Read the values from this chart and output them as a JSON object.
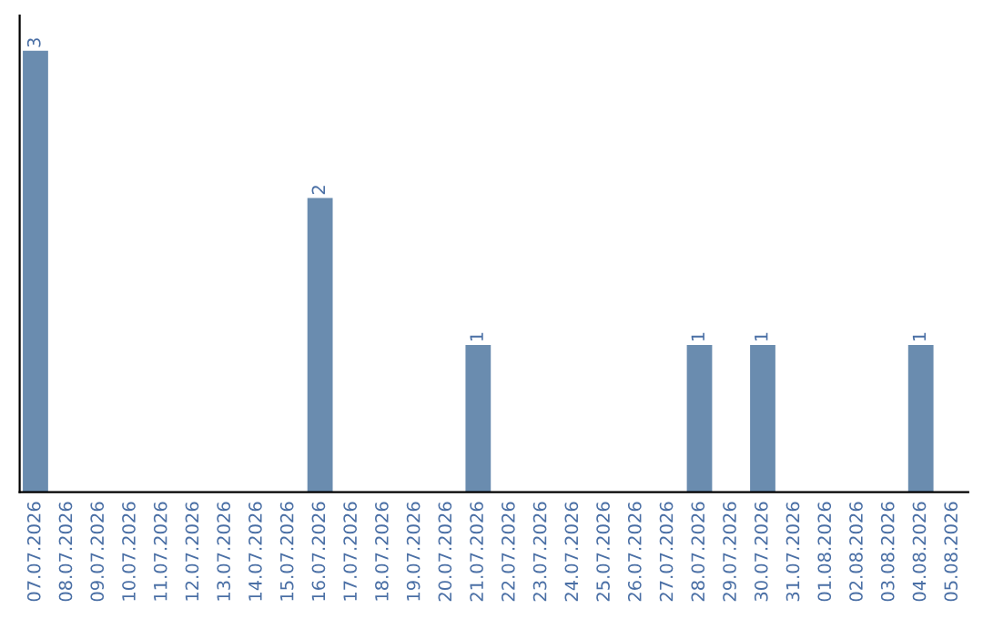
{
  "chart_data": {
    "type": "bar",
    "categories": [
      "07.07.2026",
      "08.07.2026",
      "09.07.2026",
      "10.07.2026",
      "11.07.2026",
      "12.07.2026",
      "13.07.2026",
      "14.07.2026",
      "15.07.2026",
      "16.07.2026",
      "17.07.2026",
      "18.07.2026",
      "19.07.2026",
      "20.07.2026",
      "21.07.2026",
      "22.07.2026",
      "23.07.2026",
      "24.07.2026",
      "25.07.2026",
      "26.07.2026",
      "27.07.2026",
      "28.07.2026",
      "29.07.2026",
      "30.07.2026",
      "31.07.2026",
      "01.08.2026",
      "02.08.2026",
      "03.08.2026",
      "04.08.2026",
      "05.08.2026"
    ],
    "values": [
      3,
      0,
      0,
      0,
      0,
      0,
      0,
      0,
      0,
      2,
      0,
      0,
      0,
      0,
      1,
      0,
      0,
      0,
      0,
      0,
      0,
      1,
      0,
      1,
      0,
      0,
      0,
      0,
      1,
      0
    ],
    "color": "#6a8caf",
    "value_labels": [
      "3",
      null,
      null,
      null,
      null,
      null,
      null,
      null,
      null,
      "2",
      null,
      null,
      null,
      null,
      "1",
      null,
      null,
      null,
      null,
      null,
      null,
      "1",
      null,
      "1",
      null,
      null,
      null,
      null,
      "1",
      null
    ],
    "grid": false,
    "legend": false,
    "tick_labels": "x"
  }
}
